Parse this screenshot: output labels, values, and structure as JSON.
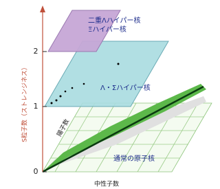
{
  "vertical_axis": {
    "label": "S粒子数（ストレンジネス）",
    "ticks": [
      "0",
      "1",
      "2"
    ]
  },
  "planes": [
    {
      "labels": [
        "二重Λハイパー核",
        "Ξハイパー核"
      ]
    },
    {
      "labels": [
        "Λ・Σハイパー核"
      ]
    },
    {
      "labels": [
        "通常の原子核"
      ]
    }
  ],
  "proton_axis": "陽子数",
  "neutron_axis": "中性子数"
}
